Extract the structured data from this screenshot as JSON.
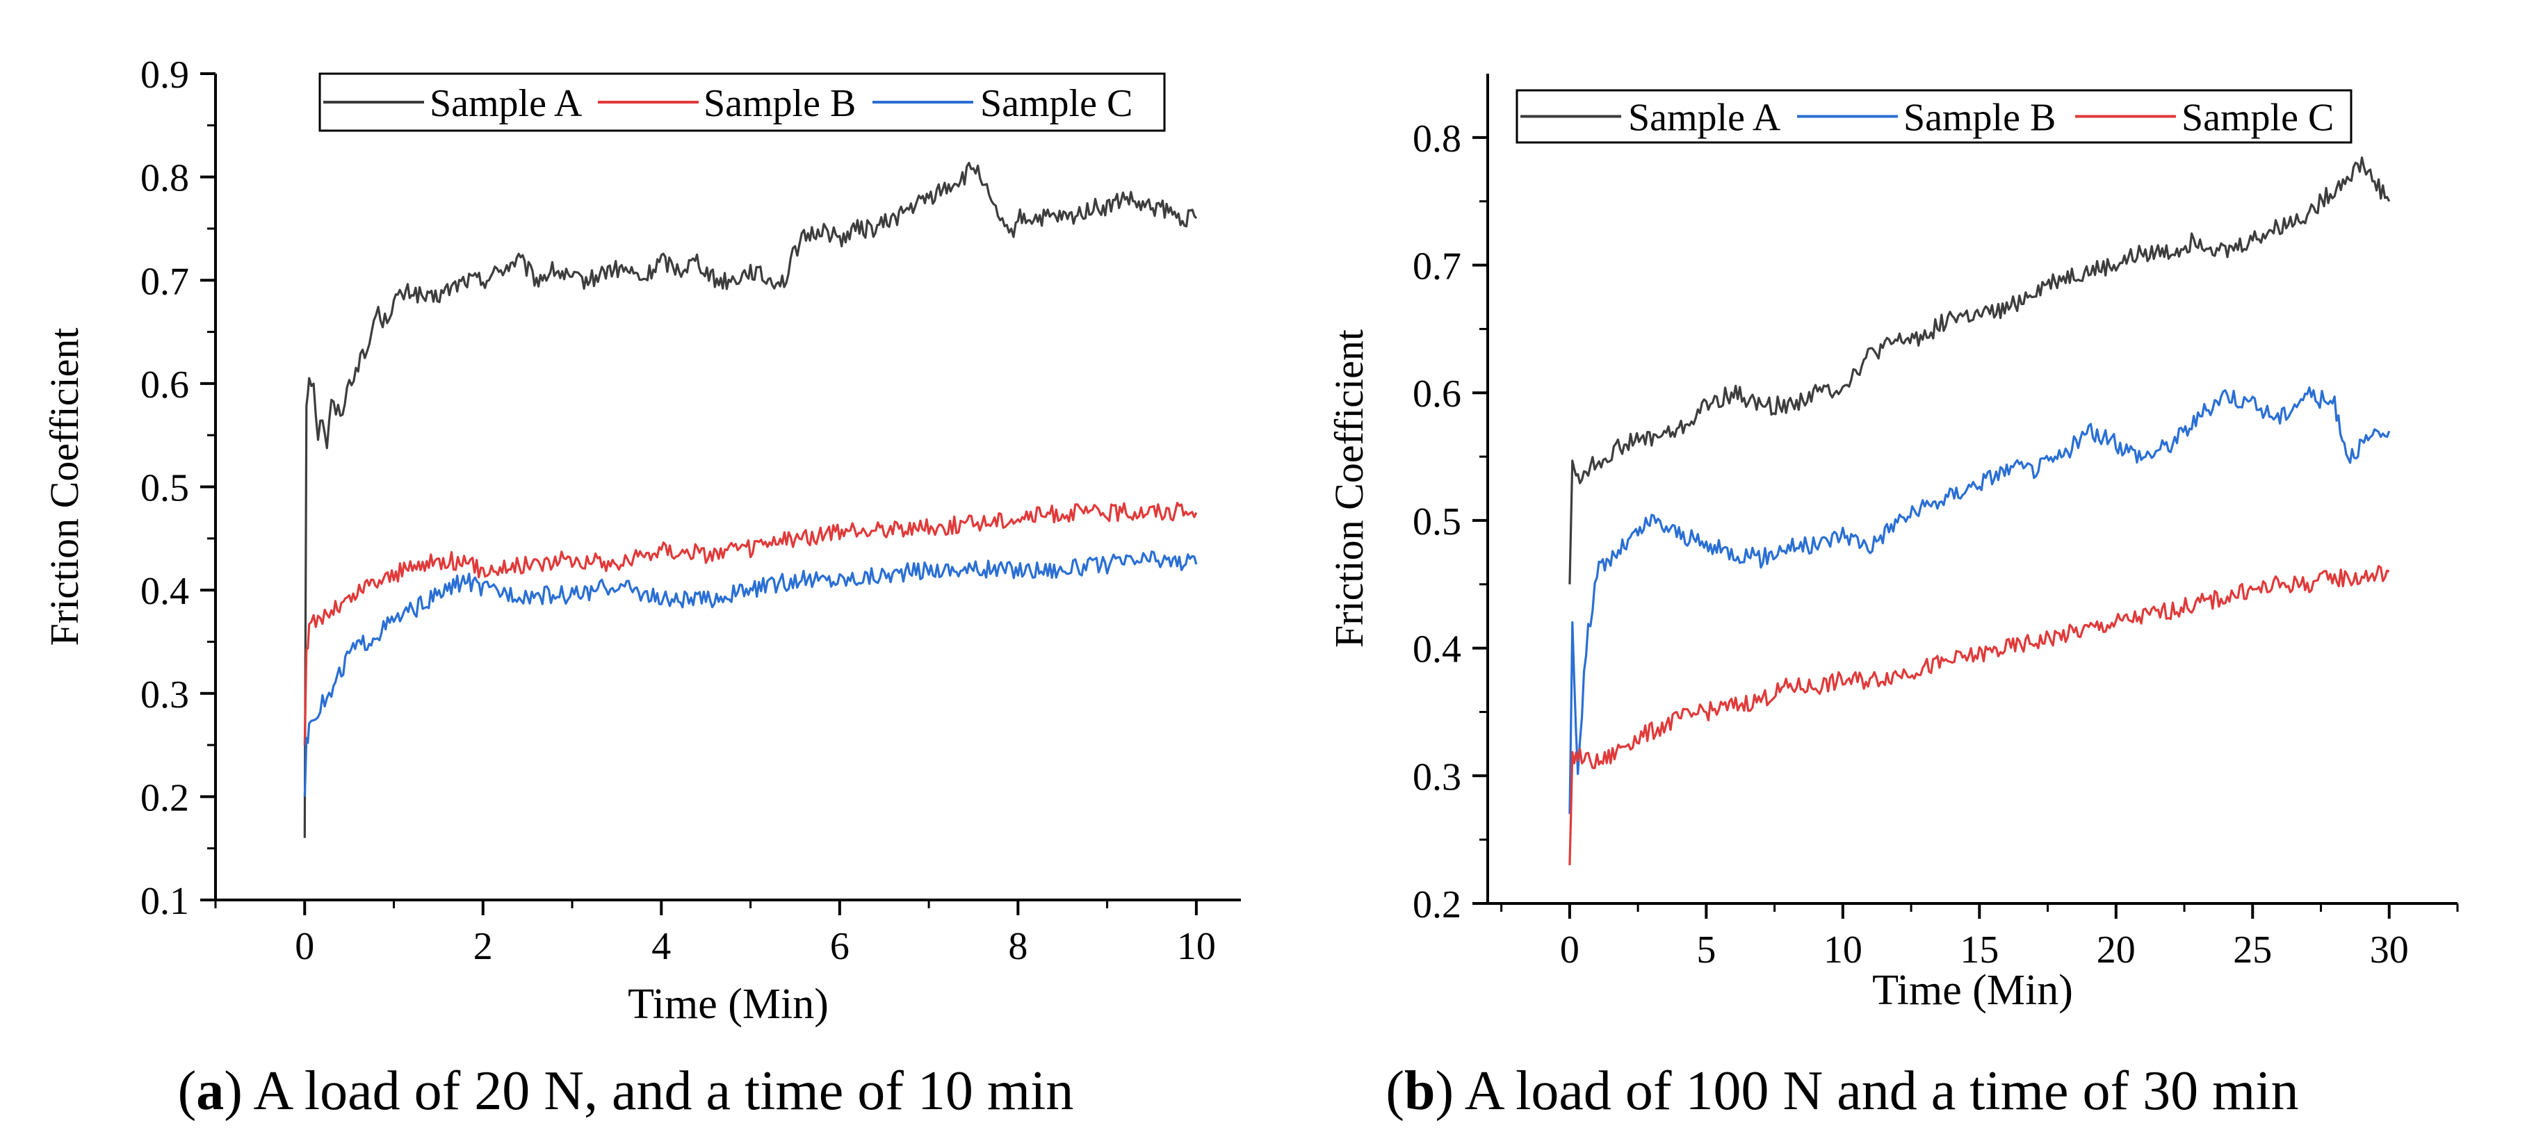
{
  "panels": [
    {
      "caption_letter": "a",
      "caption_text": "A load of 20 N, and a time of 10 min"
    },
    {
      "caption_letter": "b",
      "caption_text": "A load of 100 N and a time of 30 min"
    }
  ],
  "chart_data": [
    {
      "type": "line",
      "xlabel": "Time (Min)",
      "ylabel": "Friction Coefficient",
      "xlim": [
        -1,
        10.5
      ],
      "ylim": [
        0.1,
        0.9
      ],
      "xticks": [
        0,
        2,
        4,
        6,
        8,
        10
      ],
      "yticks": [
        0.1,
        0.2,
        0.3,
        0.4,
        0.5,
        0.6,
        0.7,
        0.8,
        0.9
      ],
      "tick_labels_x": [
        "0",
        "2",
        "4",
        "6",
        "8",
        "10"
      ],
      "tick_labels_y": [
        "0.1",
        "0.2",
        "0.3",
        "0.4",
        "0.5",
        "0.6",
        "0.7",
        "0.8",
        "0.9"
      ],
      "grid": false,
      "legend_position": "top",
      "series": [
        {
          "name": "Sample A",
          "color": "#3d3d3d",
          "x": [
            0,
            0.02,
            0.05,
            0.1,
            0.15,
            0.2,
            0.25,
            0.3,
            0.4,
            0.5,
            0.6,
            0.7,
            0.8,
            0.9,
            1.0,
            1.2,
            1.4,
            1.6,
            1.8,
            2.0,
            2.2,
            2.4,
            2.6,
            2.8,
            3.0,
            3.2,
            3.4,
            3.6,
            3.8,
            4.0,
            4.2,
            4.4,
            4.6,
            4.8,
            5.0,
            5.2,
            5.4,
            5.5,
            5.6,
            5.8,
            6.0,
            6.2,
            6.4,
            6.6,
            6.8,
            7.0,
            7.2,
            7.4,
            7.5,
            7.6,
            7.7,
            7.8,
            7.9,
            8.0,
            8.2,
            8.4,
            8.6,
            8.8,
            9.0,
            9.2,
            9.4,
            9.6,
            9.8,
            10.0
          ],
          "y": [
            0.16,
            0.58,
            0.61,
            0.6,
            0.55,
            0.57,
            0.54,
            0.58,
            0.57,
            0.6,
            0.62,
            0.63,
            0.67,
            0.66,
            0.68,
            0.69,
            0.68,
            0.69,
            0.7,
            0.7,
            0.71,
            0.72,
            0.7,
            0.71,
            0.7,
            0.7,
            0.71,
            0.71,
            0.7,
            0.72,
            0.71,
            0.72,
            0.7,
            0.7,
            0.71,
            0.7,
            0.7,
            0.73,
            0.74,
            0.75,
            0.74,
            0.75,
            0.75,
            0.76,
            0.77,
            0.78,
            0.79,
            0.8,
            0.81,
            0.8,
            0.77,
            0.76,
            0.74,
            0.76,
            0.76,
            0.76,
            0.76,
            0.77,
            0.77,
            0.78,
            0.77,
            0.77,
            0.76,
            0.76
          ]
        },
        {
          "name": "Sample B",
          "color": "#e03a3a",
          "x": [
            0,
            0.02,
            0.05,
            0.1,
            0.2,
            0.3,
            0.5,
            0.7,
            1.0,
            1.3,
            1.6,
            2.0,
            2.5,
            3.0,
            3.5,
            4.0,
            4.5,
            5.0,
            5.5,
            6.0,
            6.5,
            7.0,
            7.5,
            8.0,
            8.5,
            9.0,
            9.5,
            10.0
          ],
          "y": [
            0.25,
            0.34,
            0.36,
            0.37,
            0.375,
            0.38,
            0.39,
            0.405,
            0.415,
            0.425,
            0.43,
            0.42,
            0.425,
            0.43,
            0.425,
            0.44,
            0.435,
            0.44,
            0.45,
            0.455,
            0.46,
            0.46,
            0.465,
            0.47,
            0.475,
            0.475,
            0.477,
            0.475
          ]
        },
        {
          "name": "Sample C",
          "color": "#2a6fd4",
          "x": [
            0,
            0.02,
            0.05,
            0.1,
            0.2,
            0.3,
            0.5,
            0.7,
            1.0,
            1.3,
            1.6,
            1.8,
            2.0,
            2.5,
            3.0,
            3.5,
            3.7,
            4.0,
            4.5,
            5.0,
            5.5,
            6.0,
            6.5,
            7.0,
            7.5,
            8.0,
            8.5,
            9.0,
            9.5,
            10.0
          ],
          "y": [
            0.2,
            0.25,
            0.27,
            0.28,
            0.29,
            0.3,
            0.34,
            0.35,
            0.37,
            0.385,
            0.4,
            0.41,
            0.4,
            0.395,
            0.395,
            0.405,
            0.4,
            0.39,
            0.39,
            0.4,
            0.41,
            0.41,
            0.415,
            0.42,
            0.42,
            0.42,
            0.42,
            0.425,
            0.43,
            0.425
          ]
        }
      ]
    },
    {
      "type": "line",
      "xlabel": "Time (Min)",
      "ylabel": "Friction Coefficient",
      "xlim": [
        -3,
        32.5
      ],
      "ylim": [
        0.2,
        0.85
      ],
      "xticks": [
        0,
        5,
        10,
        15,
        20,
        25,
        30
      ],
      "yticks": [
        0.2,
        0.3,
        0.4,
        0.5,
        0.6,
        0.7,
        0.8
      ],
      "tick_labels_x": [
        "0",
        "5",
        "10",
        "15",
        "20",
        "25",
        "30"
      ],
      "tick_labels_y": [
        "0.2",
        "0.3",
        "0.4",
        "0.5",
        "0.6",
        "0.7",
        "0.8"
      ],
      "grid": false,
      "legend_position": "top",
      "series": [
        {
          "name": "Sample A",
          "color": "#3d3d3d",
          "x": [
            0,
            0.1,
            0.3,
            0.6,
            1,
            2,
            3,
            4,
            5,
            6,
            7,
            8,
            9,
            10,
            11,
            12,
            13,
            14,
            15,
            16,
            17,
            18,
            19,
            20,
            21,
            22,
            23,
            24,
            25,
            26,
            27,
            28,
            29,
            30
          ],
          "y": [
            0.45,
            0.55,
            0.53,
            0.54,
            0.545,
            0.56,
            0.565,
            0.57,
            0.59,
            0.6,
            0.59,
            0.59,
            0.6,
            0.605,
            0.63,
            0.64,
            0.645,
            0.66,
            0.66,
            0.665,
            0.68,
            0.69,
            0.695,
            0.7,
            0.71,
            0.71,
            0.72,
            0.71,
            0.72,
            0.73,
            0.74,
            0.76,
            0.78,
            0.75
          ]
        },
        {
          "name": "Sample B",
          "color": "#2a6fd4",
          "x": [
            0,
            0.1,
            0.3,
            0.6,
            1,
            1.5,
            2,
            2.5,
            3,
            4,
            5,
            6,
            7,
            8,
            9,
            10,
            11,
            12,
            13,
            14,
            15,
            16,
            17,
            18,
            19,
            20,
            21,
            22,
            23,
            24,
            25,
            26,
            27,
            28,
            28.5,
            29,
            30
          ],
          "y": [
            0.27,
            0.42,
            0.3,
            0.4,
            0.46,
            0.47,
            0.48,
            0.49,
            0.5,
            0.49,
            0.48,
            0.475,
            0.47,
            0.48,
            0.48,
            0.49,
            0.48,
            0.5,
            0.51,
            0.52,
            0.53,
            0.54,
            0.54,
            0.55,
            0.57,
            0.56,
            0.55,
            0.56,
            0.58,
            0.6,
            0.59,
            0.58,
            0.6,
            0.59,
            0.55,
            0.56,
            0.57
          ]
        },
        {
          "name": "Sample C",
          "color": "#e03a3a",
          "x": [
            0,
            0.1,
            0.3,
            0.6,
            1,
            1.5,
            2,
            3,
            4,
            5,
            6,
            7,
            8,
            9,
            10,
            11,
            12,
            13,
            14,
            15,
            16,
            17,
            18,
            19,
            20,
            21,
            22,
            23,
            24,
            25,
            26,
            27,
            28,
            29,
            30
          ],
          "y": [
            0.23,
            0.315,
            0.315,
            0.313,
            0.31,
            0.315,
            0.325,
            0.335,
            0.345,
            0.35,
            0.355,
            0.36,
            0.37,
            0.37,
            0.375,
            0.375,
            0.38,
            0.385,
            0.39,
            0.395,
            0.4,
            0.405,
            0.41,
            0.415,
            0.42,
            0.425,
            0.43,
            0.435,
            0.44,
            0.445,
            0.45,
            0.45,
            0.455,
            0.455,
            0.46
          ]
        }
      ]
    }
  ]
}
